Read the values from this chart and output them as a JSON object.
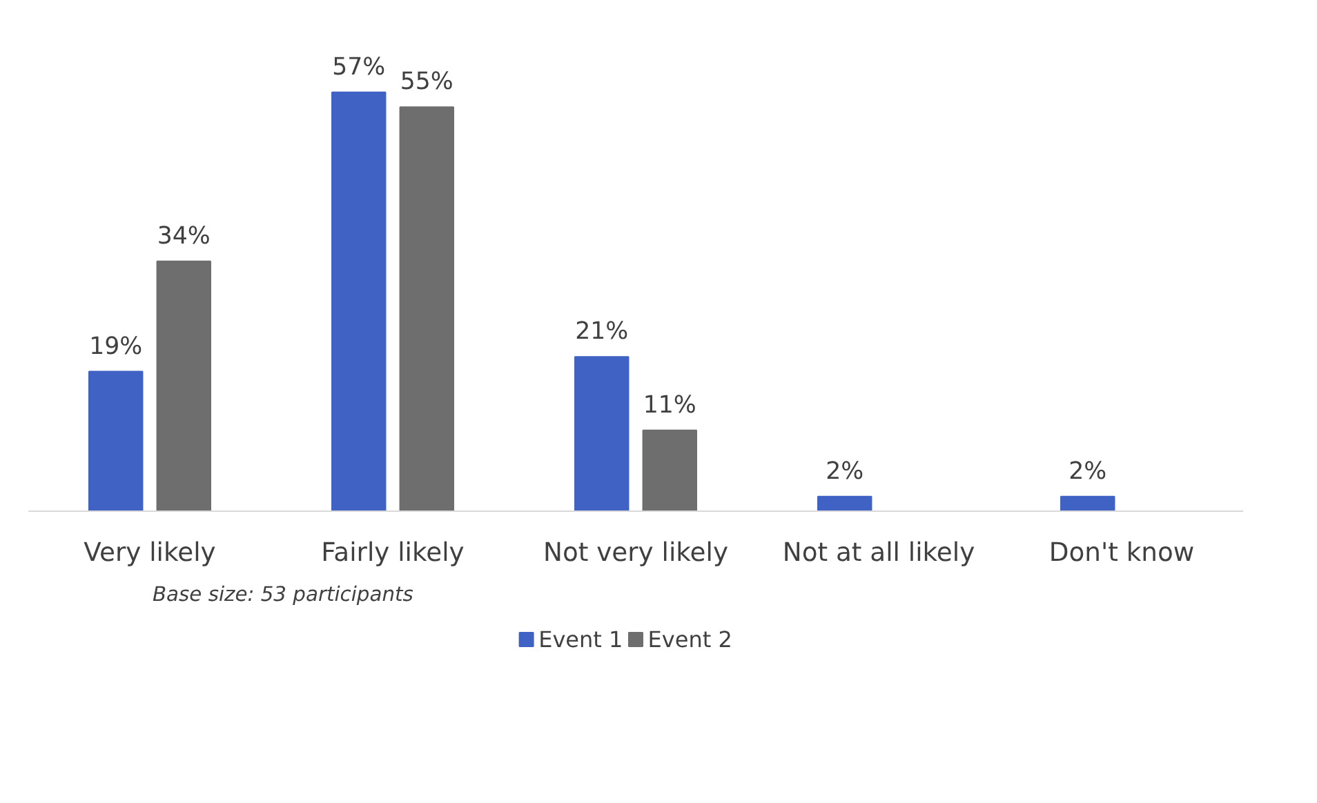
{
  "chart_data": {
    "type": "bar",
    "categories": [
      "Very likely",
      "Fairly likely",
      "Not very likely",
      "Not at all likely",
      "Don't know"
    ],
    "series": [
      {
        "name": "Event 1",
        "color": "#4062c4",
        "values": [
          19,
          57,
          21,
          2,
          2
        ],
        "value_labels": [
          "19%",
          "57%",
          "21%",
          "2%",
          "2%"
        ]
      },
      {
        "name": "Event 2",
        "color": "#6e6e6e",
        "values": [
          34,
          55,
          11,
          null,
          null
        ],
        "value_labels": [
          "34%",
          "55%",
          "11%",
          null,
          null
        ]
      }
    ],
    "annotations": [
      "Base size: 53 participants"
    ],
    "tick_labels": "x",
    "legend": "bottom"
  }
}
